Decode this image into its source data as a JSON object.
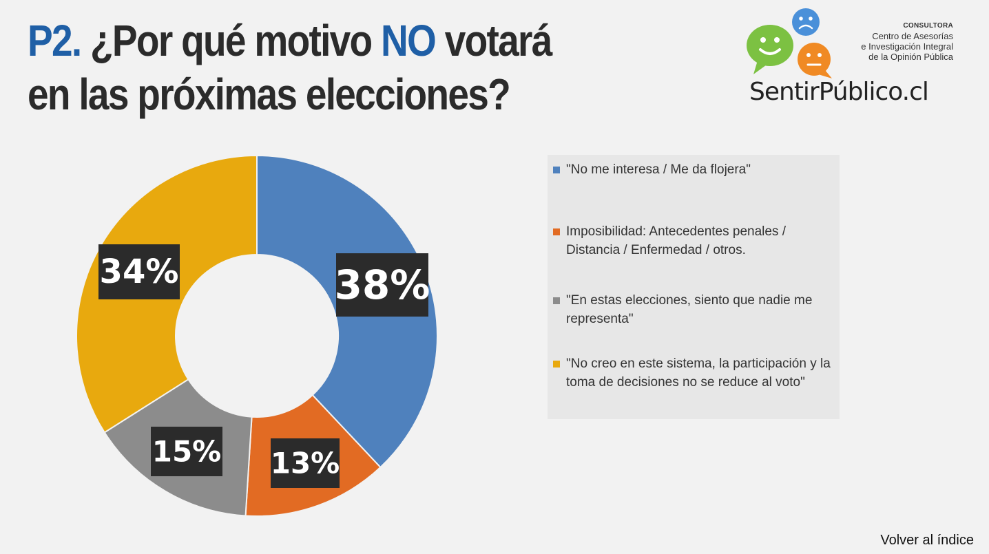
{
  "header": {
    "title_prefix": "P2.",
    "title_part1": "¿Por qué motivo",
    "title_accent": "NO",
    "title_part2": "votará",
    "title_line2": "en las próximas elecciones?"
  },
  "logo": {
    "org_line1": "CONSULTORA",
    "org_line2": "Centro de Asesorías",
    "org_line3": "e Investigación Integral",
    "org_line4": "de la Opinión Pública",
    "name": "SentirPúblico.cl",
    "colors": [
      "#4a90d9",
      "#7cc142",
      "#f08a24"
    ]
  },
  "chart_data": {
    "type": "pie",
    "donut": true,
    "categories": [
      "\"No me interesa / Me da flojera\"",
      "Imposibilidad: Antecedentes penales / Distancia / Enfermedad / otros.",
      "\"En estas elecciones, siento que nadie me representa\"",
      "\"No creo en este sistema, la participación y la toma de decisiones no se reduce al voto\""
    ],
    "values": [
      38,
      13,
      15,
      34
    ],
    "data_labels": [
      "38%",
      "13%",
      "15%",
      "34%"
    ],
    "colors": [
      "#4f81bd",
      "#e26b23",
      "#8c8c8c",
      "#e8a90e"
    ],
    "legend_position": "right"
  },
  "footer": {
    "link_label": "Volver al índice"
  }
}
